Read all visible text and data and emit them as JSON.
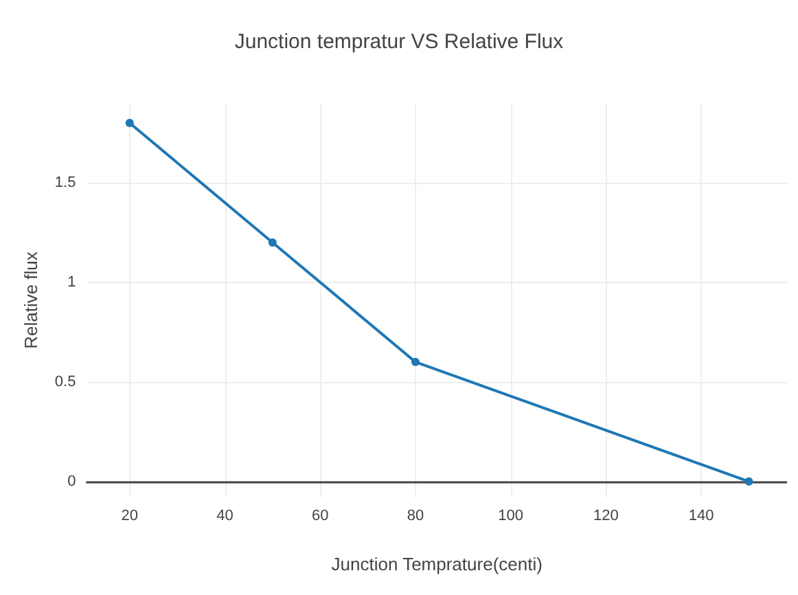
{
  "chart_data": {
    "type": "line",
    "title": "Junction tempratur VS Relative Flux",
    "xlabel": "Junction Temprature(centi)",
    "ylabel": "Relative flux",
    "x": [
      20,
      50,
      80,
      150
    ],
    "series": [
      {
        "color": "#1f77b4",
        "values": [
          1.8,
          1.2,
          0.6,
          0
        ]
      }
    ],
    "xlim": [
      11,
      158
    ],
    "xticks": [
      20,
      40,
      60,
      80,
      100,
      120,
      140
    ],
    "ylim": [
      -0.08,
      1.9
    ],
    "yticks": [
      0,
      0.5,
      1,
      1.5
    ],
    "grid": true,
    "marker": "circle",
    "line_style": "solid"
  }
}
